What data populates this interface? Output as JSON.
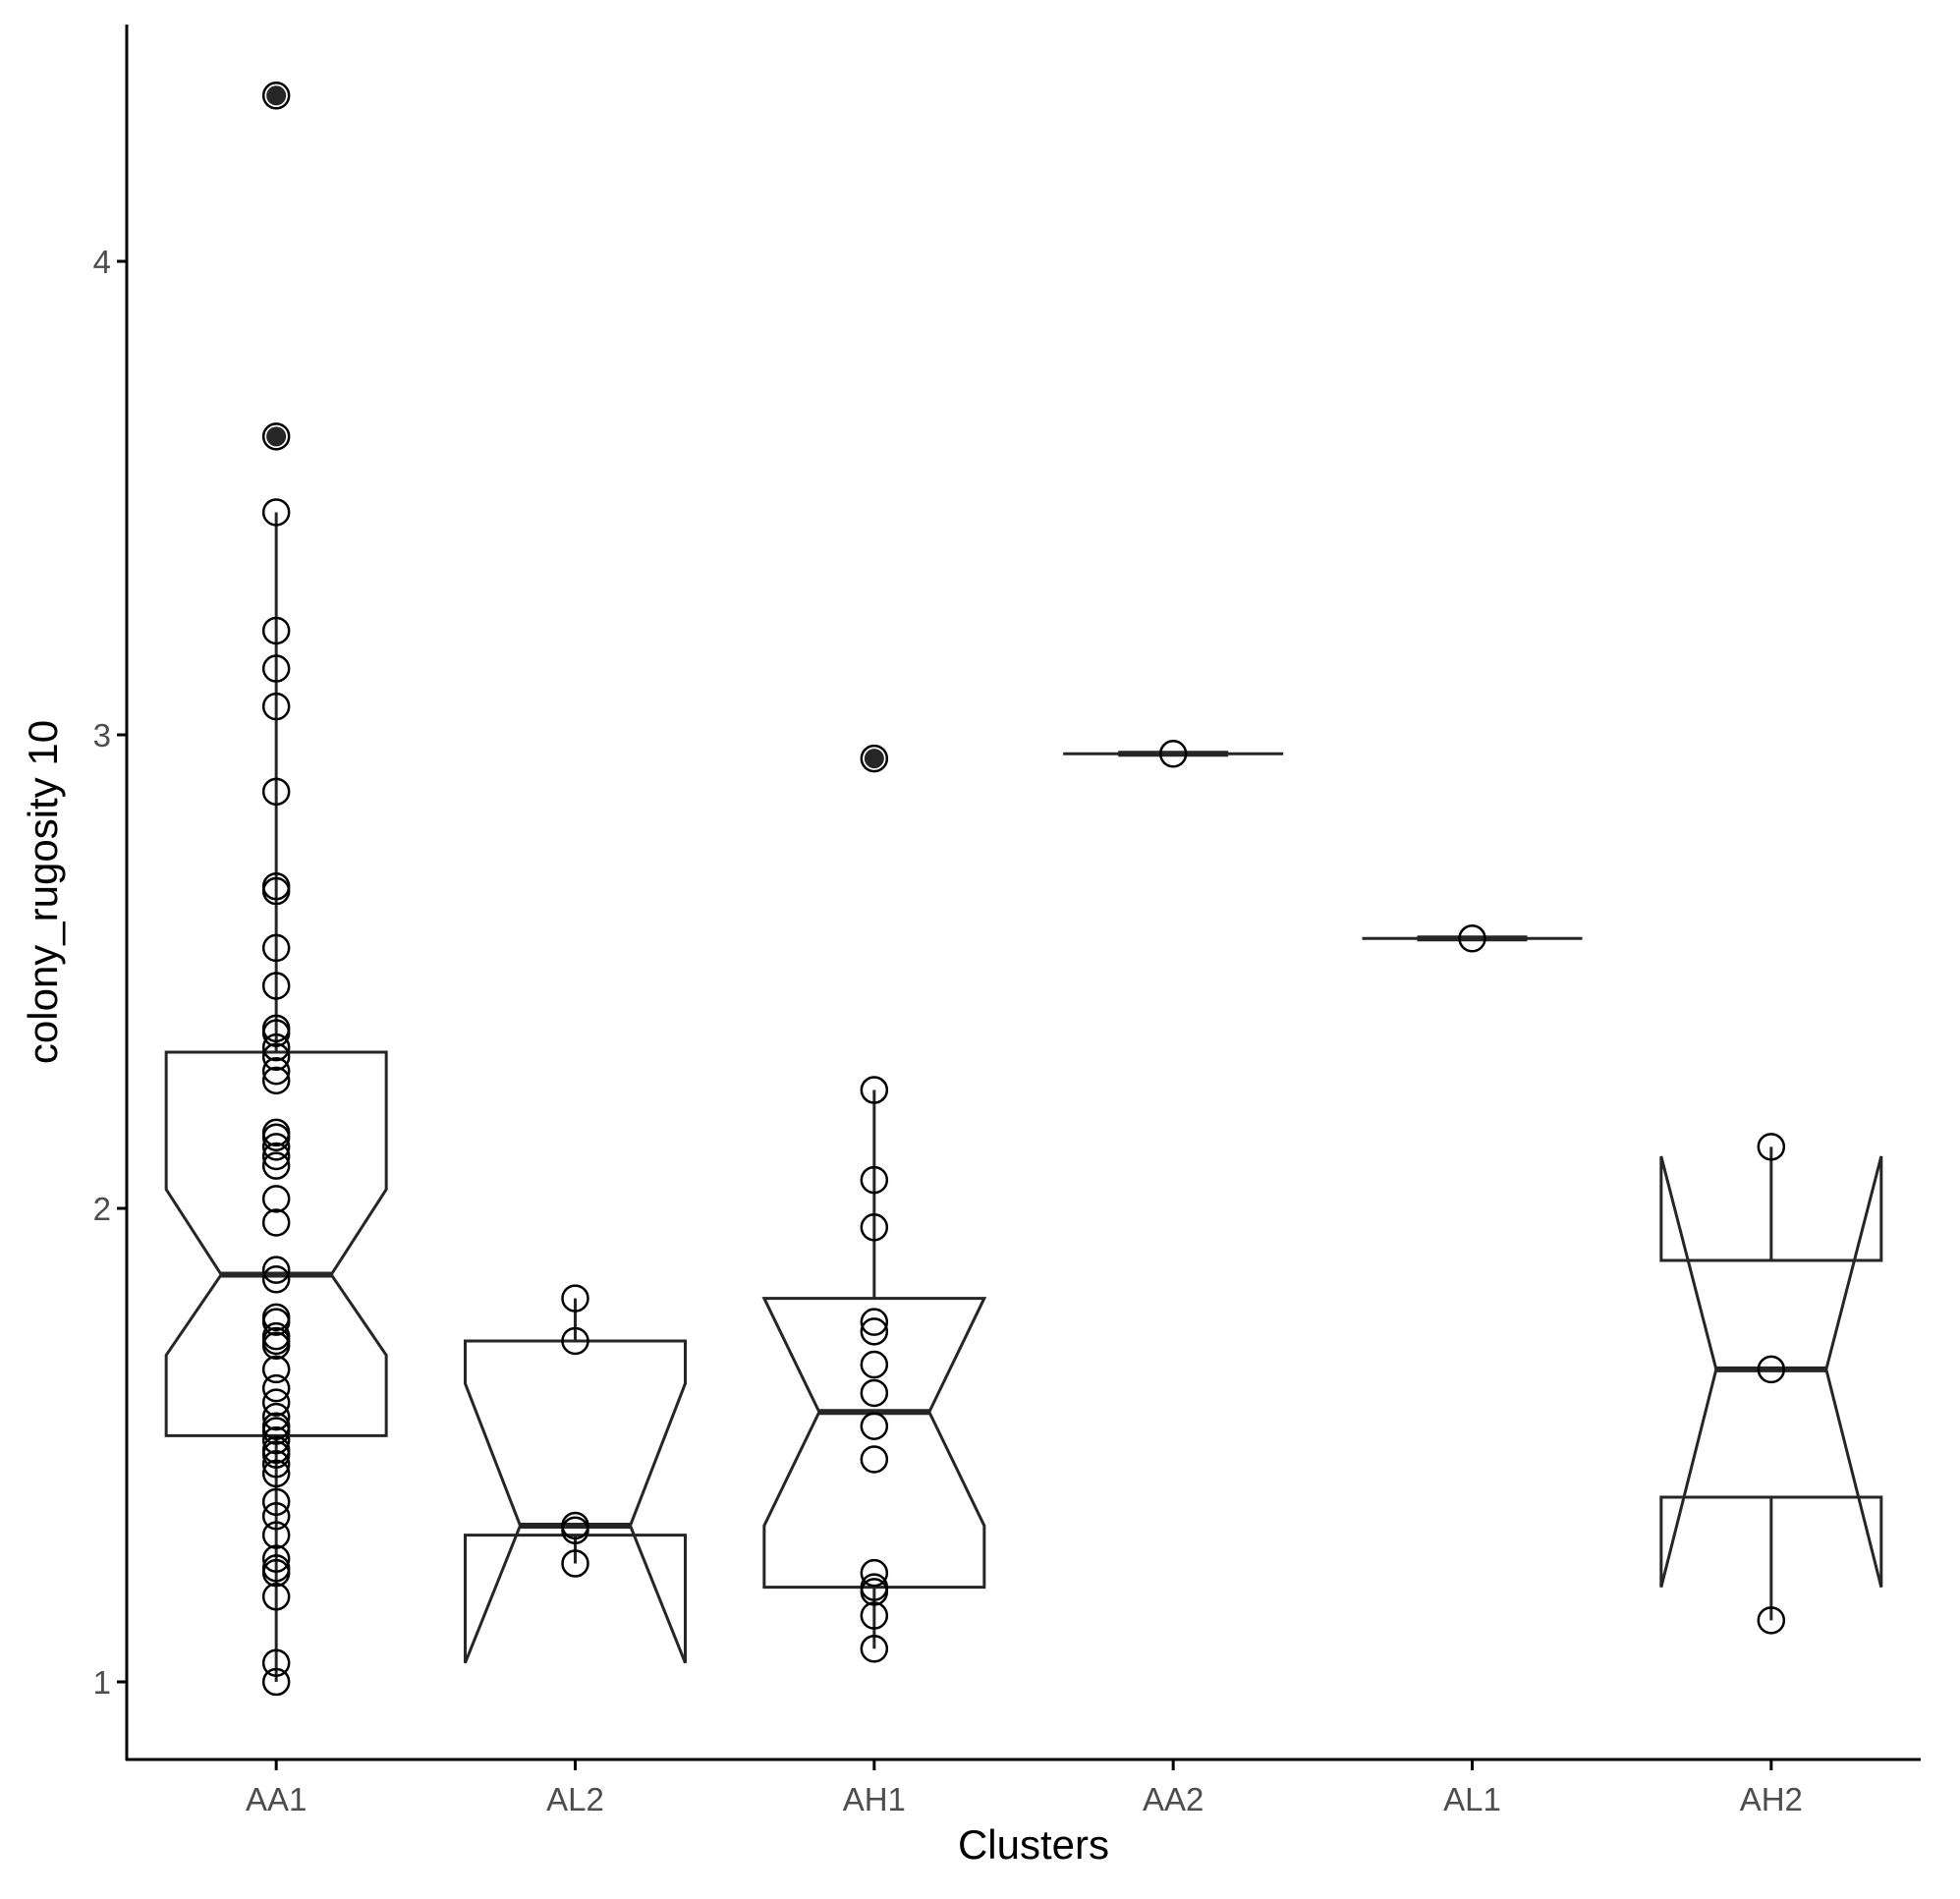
{
  "chart_data": {
    "type": "boxplot",
    "notched": true,
    "xlabel": "Clusters",
    "ylabel": "colony_rugosity 10",
    "ylim": [
      0.83,
      4.55
    ],
    "yticks": [
      1,
      2,
      3,
      4
    ],
    "grid": false,
    "legend": "none",
    "categories": [
      "AA1",
      "AL2",
      "AH1",
      "AA2",
      "AL1",
      "AH2"
    ],
    "boxes": [
      {
        "category": "AA1",
        "lower_whisker": 1.0,
        "q1": 1.52,
        "notch_low": 1.69,
        "median": 1.86,
        "notch_high": 2.04,
        "q3": 2.33,
        "upper_whisker": 3.47,
        "outliers": [
          3.63,
          4.35
        ]
      },
      {
        "category": "AL2",
        "lower_whisker": 1.25,
        "q1": 1.31,
        "notch_low": 1.04,
        "median": 1.33,
        "notch_high": 1.63,
        "q3": 1.72,
        "upper_whisker": 1.81,
        "outliers": []
      },
      {
        "category": "AH1",
        "lower_whisker": 1.07,
        "q1": 1.2,
        "notch_low": 1.33,
        "median": 1.57,
        "notch_high": 1.81,
        "q3": 1.81,
        "upper_whisker": 2.25,
        "outliers": [
          2.95
        ]
      },
      {
        "category": "AA2",
        "lower_whisker": 2.96,
        "q1": 2.96,
        "notch_low": 2.96,
        "median": 2.96,
        "notch_high": 2.96,
        "q3": 2.96,
        "upper_whisker": 2.96,
        "outliers": []
      },
      {
        "category": "AL1",
        "lower_whisker": 2.57,
        "q1": 2.57,
        "notch_low": 2.57,
        "median": 2.57,
        "notch_high": 2.57,
        "q3": 2.57,
        "upper_whisker": 2.57,
        "outliers": []
      },
      {
        "category": "AH2",
        "lower_whisker": 1.13,
        "q1": 1.39,
        "notch_low": 1.2,
        "median": 1.66,
        "notch_high": 2.11,
        "q3": 1.89,
        "upper_whisker": 2.13,
        "outliers": []
      }
    ],
    "points": [
      {
        "category": "AA1",
        "values": [
          4.35,
          3.63,
          3.47,
          3.22,
          3.14,
          3.06,
          2.88,
          2.68,
          2.67,
          2.55,
          2.47,
          2.38,
          2.37,
          2.34,
          2.32,
          2.29,
          2.27,
          2.16,
          2.15,
          2.13,
          2.11,
          2.09,
          2.02,
          1.97,
          1.87,
          1.85,
          1.77,
          1.76,
          1.73,
          1.72,
          1.71,
          1.66,
          1.62,
          1.59,
          1.56,
          1.54,
          1.53,
          1.51,
          1.49,
          1.48,
          1.46,
          1.44,
          1.38,
          1.35,
          1.31,
          1.26,
          1.24,
          1.23,
          1.18,
          1.04,
          1.0
        ]
      },
      {
        "category": "AL2",
        "values": [
          1.81,
          1.72,
          1.33,
          1.32,
          1.25
        ]
      },
      {
        "category": "AH1",
        "values": [
          2.95,
          2.25,
          2.06,
          1.96,
          1.76,
          1.74,
          1.67,
          1.61,
          1.54,
          1.47,
          1.23,
          1.2,
          1.19,
          1.14,
          1.07
        ]
      },
      {
        "category": "AA2",
        "values": [
          2.96
        ]
      },
      {
        "category": "AL1",
        "values": [
          2.57
        ]
      },
      {
        "category": "AH2",
        "values": [
          2.13,
          1.66,
          1.13
        ]
      }
    ]
  }
}
